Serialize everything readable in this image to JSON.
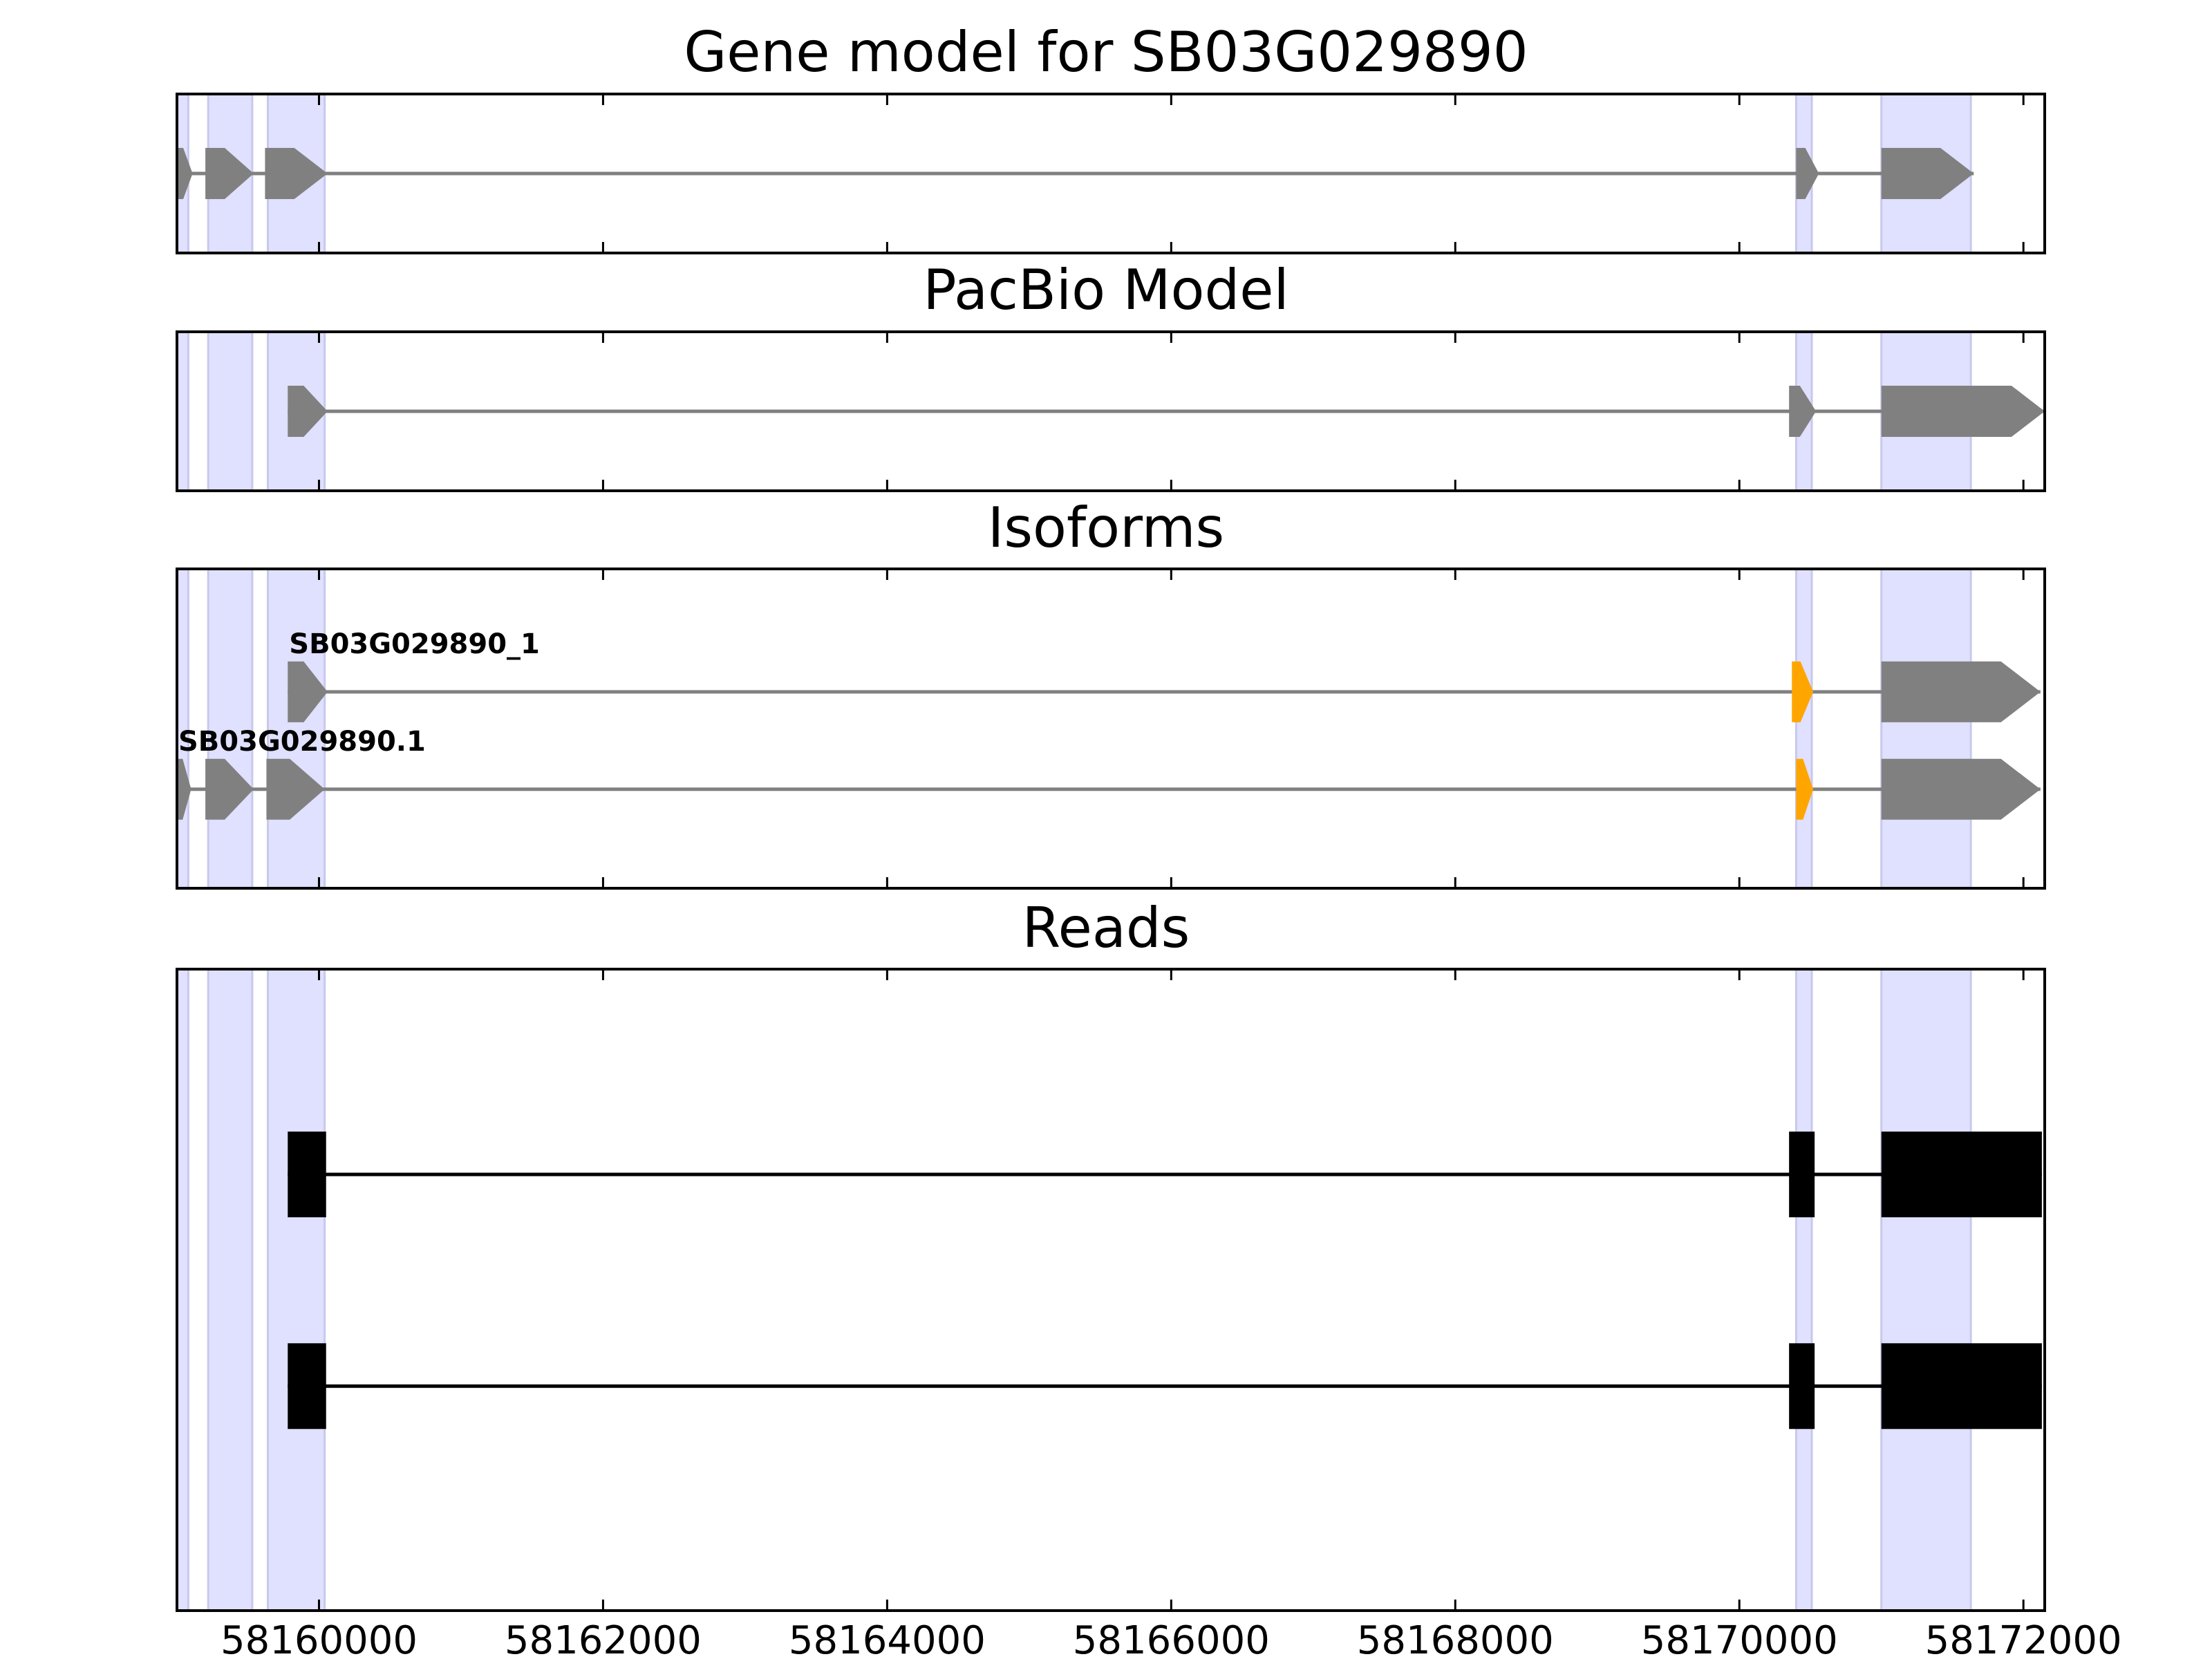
{
  "chart_data": [
    {
      "type": "gene-track",
      "title": "Gene model for SB03G029890",
      "tracks": [
        {
          "exons": [
            [
              58159000,
              58159110
            ],
            [
              58159200,
              58159540
            ],
            [
              58159620,
              58160060
            ],
            [
              58170400,
              58170560
            ],
            [
              58171000,
              58171650
            ]
          ],
          "last_exon_arrow": true
        }
      ]
    },
    {
      "type": "gene-track",
      "title": "PacBio Model",
      "tracks": [
        {
          "exons": [
            [
              58159780,
              58160060
            ],
            [
              58170350,
              58170540
            ],
            [
              58171000,
              58172150
            ]
          ],
          "last_exon_arrow": true
        }
      ]
    },
    {
      "type": "gene-track",
      "title": "Isoforms",
      "tracks": [
        {
          "label": "SB03G029890_1",
          "exons": [
            [
              58159780,
              58160060
            ],
            [
              58170370,
              58170520
            ],
            [
              58171000,
              58172120
            ]
          ],
          "highlight_exon": 1
        },
        {
          "label": "SB03G029890.1",
          "exons": [
            [
              58159000,
              58159100
            ],
            [
              58159200,
              58159540
            ],
            [
              58159630,
              58160040
            ],
            [
              58170400,
              58170520
            ],
            [
              58171000,
              58172120
            ]
          ],
          "highlight_exon": 3
        }
      ]
    },
    {
      "type": "reads",
      "title": "Reads",
      "tracks": [
        {
          "exons": [
            [
              58159780,
              58160050
            ],
            [
              58170350,
              58170530
            ],
            [
              58171000,
              58172130
            ]
          ]
        },
        {
          "exons": [
            [
              58159780,
              58160050
            ],
            [
              58170350,
              58170530
            ],
            [
              58171000,
              58172130
            ]
          ]
        }
      ]
    }
  ],
  "xlim": [
    58159000,
    58172150
  ],
  "x_ticks": [
    58160000,
    58162000,
    58164000,
    58166000,
    58168000,
    58170000,
    58172000
  ],
  "x_tick_labels": [
    "58160000",
    "58162000",
    "58164000",
    "58166000",
    "58168000",
    "58170000",
    "58172000"
  ],
  "shaded_regions": [
    [
      58159000,
      58159080
    ],
    [
      58159220,
      58159530
    ],
    [
      58159640,
      58160040
    ],
    [
      58170400,
      58170510
    ],
    [
      58171000,
      58171630
    ]
  ],
  "colors": {
    "gene": "#808080",
    "highlight": "#FFA500",
    "reads": "#000000",
    "shade": "#E0E0FF",
    "shade_edge": "#C8C8EE",
    "intron_gene": "#808080",
    "intron_reads": "#000000"
  }
}
